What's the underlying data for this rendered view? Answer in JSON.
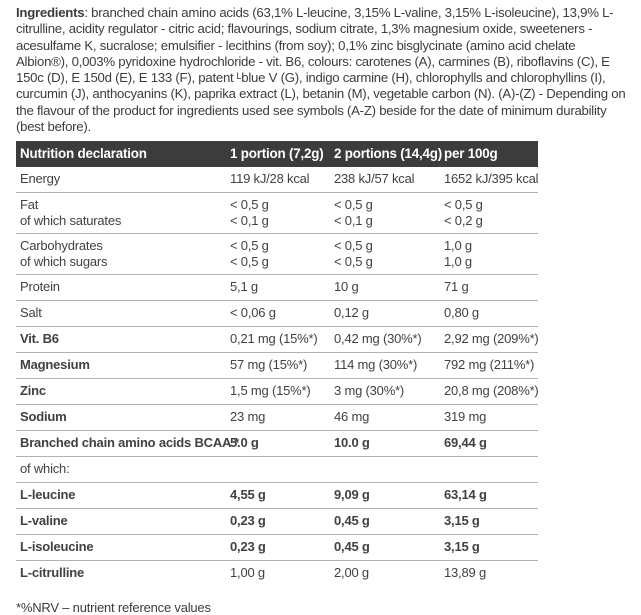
{
  "ingredients": {
    "label": "Ingredients",
    "text": ": branched chain amino acids (63,1% L-leucine, 3,15% L-valine, 3,15% L-isoleucine), 13,9% L-citrulline, acidity regulator - citric acid; flavourings, sodium citrate, 1,3% magnesium oxide, sweeteners - acesulfame K, sucralose; emulsifier - lecithins (from soy); 0,1% zinc bisglycinate (amino acid chelate Albion®), 0,003% pyridoxine hydrochloride - vit. B6, colours: carotenes (A), carmines (B), riboflavins (C), E 150c (D), E 150d (E), E 133 (F), patent ᴸblue V (G), indigo carmine (H), chlorophylls and chlorophyllins (I), curcumin (J), anthocyanins (K), paprika extract (L), betanin (M), vegetable carbon (N).  (A)-(Z) - Depending on the flavour of the product for ingredients used see symbols (A-Z) beside for the date of minimum durability (best before)."
  },
  "table": {
    "headers": [
      "Nutrition declaration",
      "1 portion (7,2g)",
      "2 portions (14,4g)",
      "per 100g"
    ],
    "rows": [
      {
        "label": "Energy",
        "values": [
          "119 kJ/28 kcal",
          "238 kJ/57 kcal",
          "1652 kJ/395 kcal"
        ],
        "bold_label": false,
        "bold_values": false,
        "indent": false
      },
      {
        "label": "Fat",
        "sub_label": "of which saturates",
        "values": [
          "< 0,5 g",
          "< 0,5 g",
          "< 0,5 g"
        ],
        "sub_values": [
          "< 0,1 g",
          "< 0,1 g",
          "< 0,2 g"
        ],
        "bold_label": false,
        "bold_values": false,
        "indent": false
      },
      {
        "label": "Carbohydrates",
        "sub_label": "of which sugars",
        "values": [
          "< 0,5 g",
          "< 0,5 g",
          "1,0 g"
        ],
        "sub_values": [
          "< 0,5 g",
          "< 0,5 g",
          "1,0 g"
        ],
        "bold_label": false,
        "bold_values": false,
        "indent": false
      },
      {
        "label": "Protein",
        "values": [
          "5,1 g",
          "10 g",
          "71 g"
        ],
        "bold_label": false,
        "bold_values": false,
        "indent": false
      },
      {
        "label": "Salt",
        "values": [
          "< 0,06 g",
          "0,12 g",
          "0,80 g"
        ],
        "bold_label": false,
        "bold_values": false,
        "indent": false
      },
      {
        "label": "Vit. B6",
        "values": [
          "0,21 mg (15%*)",
          "0,42 mg (30%*)",
          "2,92 mg (209%*)"
        ],
        "bold_label": true,
        "bold_values": false,
        "indent": false
      },
      {
        "label": "Magnesium",
        "values": [
          "57 mg (15%*)",
          "114 mg (30%*)",
          "792 mg (211%*)"
        ],
        "bold_label": true,
        "bold_values": false,
        "indent": false
      },
      {
        "label": "Zinc",
        "values": [
          "1,5 mg (15%*)",
          "3 mg (30%*)",
          "20,8 mg (208%*)"
        ],
        "bold_label": true,
        "bold_values": false,
        "indent": false
      },
      {
        "label": "Sodium",
        "values": [
          "23 mg",
          "46 mg",
          "319 mg"
        ],
        "bold_label": true,
        "bold_values": false,
        "indent": false
      },
      {
        "label": "Branched chain amino acids BCAA *",
        "values": [
          "5.0 g",
          "10.0 g",
          "69,44 g"
        ],
        "bold_label": true,
        "bold_values": true,
        "indent": false
      },
      {
        "label": "of which:",
        "values": [
          "",
          "",
          ""
        ],
        "bold_label": false,
        "bold_values": false,
        "indent": true
      },
      {
        "label": "L-leucine",
        "values": [
          "4,55 g",
          "9,09 g",
          "63,14 g"
        ],
        "bold_label": true,
        "bold_values": true,
        "indent": true
      },
      {
        "label": "L-valine",
        "values": [
          "0,23 g",
          "0,45 g",
          "3,15 g"
        ],
        "bold_label": true,
        "bold_values": true,
        "indent": true
      },
      {
        "label": "L-isoleucine",
        "values": [
          "0,23 g",
          "0,45 g",
          "3,15 g"
        ],
        "bold_label": true,
        "bold_values": true,
        "indent": true
      },
      {
        "label": "L-citrulline",
        "values": [
          "1,00 g",
          "2,00 g",
          "13,89 g"
        ],
        "bold_label": true,
        "bold_values": false,
        "indent": false
      }
    ]
  },
  "footnote": "*%NRV – nutrient reference values",
  "colors": {
    "header_bg": "#3c3c3c",
    "header_text": "#ffffff",
    "body_text": "#414141",
    "divider": "#b2b2b2"
  }
}
